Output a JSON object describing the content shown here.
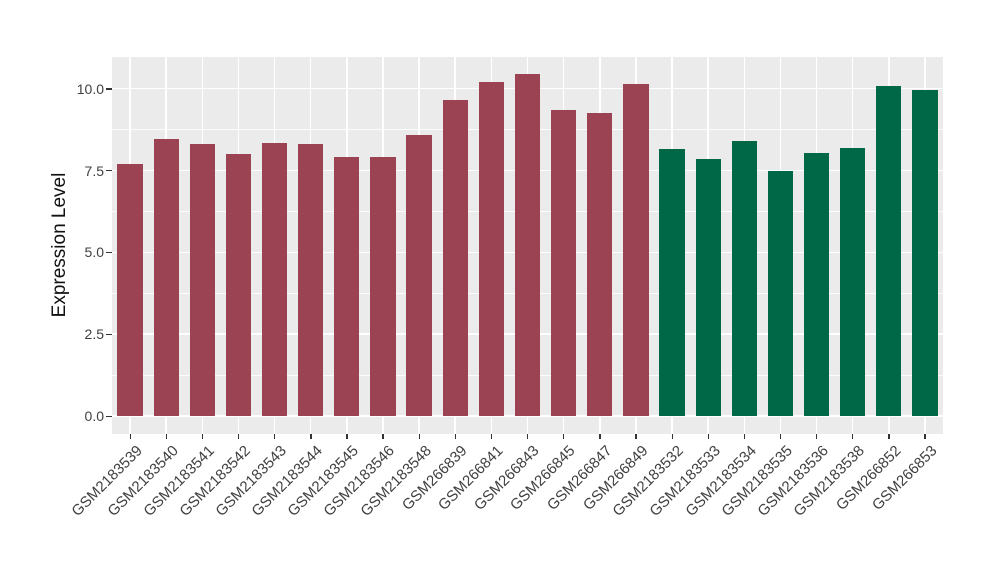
{
  "chart_data": {
    "type": "bar",
    "title": "",
    "xlabel": "",
    "ylabel": "Expression Level",
    "categories": [
      "GSM2183539",
      "GSM2183540",
      "GSM2183541",
      "GSM2183542",
      "GSM2183543",
      "GSM2183544",
      "GSM2183545",
      "GSM2183546",
      "GSM2183548",
      "GSM266839",
      "GSM266841",
      "GSM266843",
      "GSM266845",
      "GSM266847",
      "GSM266849",
      "GSM2183532",
      "GSM2183533",
      "GSM2183534",
      "GSM2183535",
      "GSM2183536",
      "GSM2183538",
      "GSM266852",
      "GSM266853"
    ],
    "values": [
      7.7,
      8.45,
      8.3,
      8.0,
      8.35,
      8.3,
      7.9,
      7.9,
      8.6,
      9.65,
      10.2,
      10.45,
      9.35,
      9.25,
      10.15,
      8.15,
      7.85,
      8.4,
      7.5,
      8.05,
      8.2,
      10.1,
      9.95
    ],
    "bar_groups": [
      0,
      0,
      0,
      0,
      0,
      0,
      0,
      0,
      0,
      0,
      0,
      0,
      0,
      0,
      0,
      1,
      1,
      1,
      1,
      1,
      1,
      1,
      1
    ],
    "group_colors": [
      "#9B4352",
      "#006747"
    ],
    "y_ticks": [
      0,
      2.5,
      5,
      7.5,
      10
    ],
    "y_tick_labels": [
      "0.0",
      "2.5",
      "5.0",
      "7.5",
      "10.0"
    ],
    "y_minor_ticks": [
      1.25,
      3.75,
      6.25,
      8.75
    ],
    "ylim": [
      -0.55,
      10.97
    ],
    "grid": true,
    "legend": false,
    "panel_bg": "#EBEBEB",
    "grid_color": "#FFFFFF",
    "axis_text_color": "#404040",
    "tick_color": "#333333",
    "background": "#FFFFFF"
  }
}
